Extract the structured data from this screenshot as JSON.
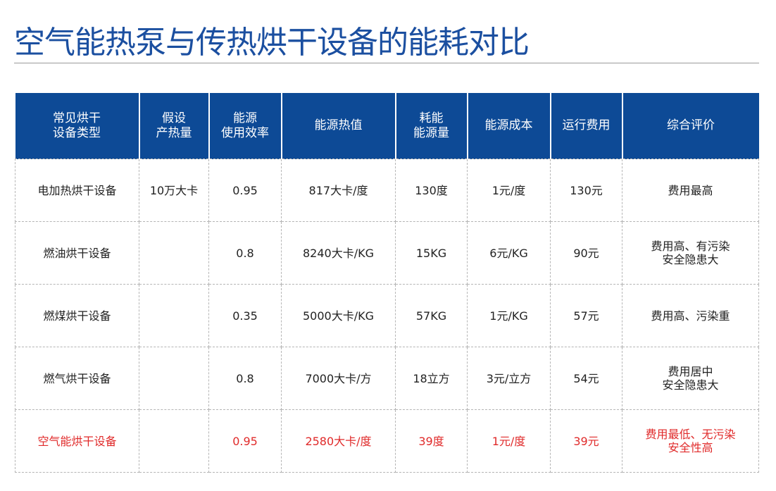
{
  "title": "空气能热泵与传热烘干设备的能耗对比",
  "colors": {
    "title": "#1b4fa0",
    "header_bg": "#0d4a96",
    "highlight": "#e02a2a"
  },
  "table": {
    "headers": [
      [
        "常见烘干",
        "设备类型"
      ],
      [
        "假设",
        "产热量"
      ],
      [
        "能源",
        "使用效率"
      ],
      [
        "能源热值"
      ],
      [
        "耗能",
        "能源量"
      ],
      [
        "能源成本"
      ],
      [
        "运行费用"
      ],
      [
        "综合评价"
      ]
    ],
    "rows": [
      {
        "cells": [
          "电加热烘干设备",
          "10万大卡",
          "0.95",
          "817大卡/度",
          "130度",
          "1元/度",
          "130元"
        ],
        "eval": [
          "费用最高"
        ]
      },
      {
        "cells": [
          "燃油烘干设备",
          "",
          "0.8",
          "8240大卡/KG",
          "15KG",
          "6元/KG",
          "90元"
        ],
        "eval": [
          "费用高、有污染",
          "安全隐患大"
        ]
      },
      {
        "cells": [
          "燃煤烘干设备",
          "",
          "0.35",
          "5000大卡/KG",
          "57KG",
          "1元/KG",
          "57元"
        ],
        "eval": [
          "费用高、污染重"
        ]
      },
      {
        "cells": [
          "燃气烘干设备",
          "",
          "0.8",
          "7000大卡/方",
          "18立方",
          "3元/立方",
          "54元"
        ],
        "eval": [
          "费用居中",
          "安全隐患大"
        ]
      },
      {
        "cells": [
          "空气能烘干设备",
          "",
          "0.95",
          "2580大卡/度",
          "39度",
          "1元/度",
          "39元"
        ],
        "eval": [
          "费用最低、无污染",
          "安全性高"
        ],
        "highlight": true
      }
    ]
  }
}
